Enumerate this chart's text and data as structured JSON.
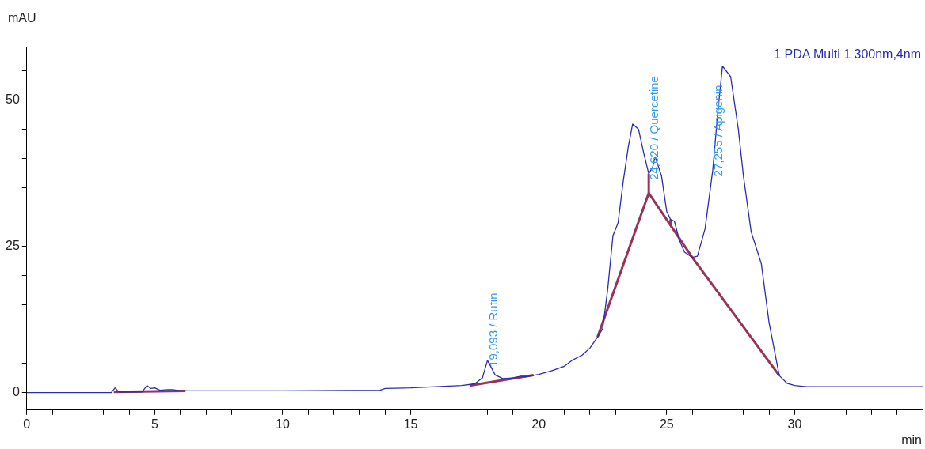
{
  "chart_data": {
    "type": "line",
    "xlabel": "min",
    "ylabel": "mAU",
    "xlim": [
      0,
      35
    ],
    "ylim": [
      -3,
      59
    ],
    "xticks": [
      0,
      {
        "value": 1,
        "label": null
      },
      {
        "value": 2,
        "label": null
      },
      {
        "value": 3,
        "label": null
      },
      {
        "value": 4,
        "label": null
      },
      5,
      {
        "value": 6,
        "label": null
      },
      {
        "value": 7,
        "label": null
      },
      {
        "value": 8,
        "label": null
      },
      {
        "value": 9,
        "label": null
      },
      10,
      {
        "value": 11,
        "label": null
      },
      {
        "value": 12,
        "label": null
      },
      {
        "value": 13,
        "label": null
      },
      {
        "value": 14,
        "label": null
      },
      15,
      {
        "value": 16,
        "label": null
      },
      {
        "value": 17,
        "label": null
      },
      {
        "value": 18,
        "label": null
      },
      {
        "value": 19,
        "label": null
      },
      20,
      {
        "value": 21,
        "label": null
      },
      {
        "value": 22,
        "label": null
      },
      {
        "value": 23,
        "label": null
      },
      {
        "value": 24,
        "label": null
      },
      25,
      {
        "value": 26,
        "label": null
      },
      {
        "value": 27,
        "label": null
      },
      {
        "value": 28,
        "label": null
      },
      {
        "value": 29,
        "label": null
      },
      30,
      {
        "value": 31,
        "label": null
      },
      {
        "value": 32,
        "label": null
      },
      {
        "value": 33,
        "label": null
      },
      {
        "value": 34,
        "label": null
      },
      {
        "value": 35,
        "label": null
      }
    ],
    "yticks": [
      0,
      {
        "value": 5,
        "label": null
      },
      {
        "value": 10,
        "label": null
      },
      {
        "value": 15,
        "label": null
      },
      {
        "value": 20,
        "label": null
      },
      25,
      {
        "value": 30,
        "label": null
      },
      {
        "value": 35,
        "label": null
      },
      {
        "value": 40,
        "label": null
      },
      {
        "value": 45,
        "label": null
      },
      50,
      {
        "value": 55,
        "label": null
      }
    ],
    "grid": false,
    "legend": "top right",
    "marker": "none",
    "series": [
      {
        "name": "1 PDA Multi 1 300nm,4nm",
        "color": "#2b2bb0",
        "x": [
          0,
          3.3,
          3.45,
          3.6,
          4.5,
          4.7,
          4.85,
          5.0,
          5.2,
          5.5,
          5.7,
          6.0,
          10,
          13.8,
          14,
          15,
          16,
          17,
          17.5,
          17.8,
          18.0,
          18.3,
          18.6,
          19,
          19.3,
          19.5,
          20,
          20.5,
          21,
          21.3,
          21.7,
          22,
          22.3,
          22.5,
          22.7,
          22.9,
          23.1,
          23.3,
          23.5,
          23.67,
          23.9,
          24.1,
          24.3,
          24.45,
          24.55,
          24.8,
          25.0,
          25.15,
          25.3,
          25.5,
          25.7,
          26.0,
          26.2,
          26.5,
          26.8,
          27.0,
          27.18,
          27.5,
          27.8,
          28.0,
          28.3,
          28.7,
          29.0,
          29.4,
          29.7,
          30,
          30.5,
          35
        ],
        "values": [
          0,
          0,
          0.8,
          0.1,
          0.1,
          1.2,
          0.7,
          0.8,
          0.4,
          0.5,
          0.5,
          0.3,
          0.3,
          0.4,
          0.7,
          0.8,
          1.0,
          1.2,
          1.5,
          2.5,
          5.5,
          3.0,
          2.4,
          2.5,
          2.8,
          2.7,
          3.1,
          3.7,
          4.5,
          5.5,
          6.4,
          7.6,
          9.5,
          10.9,
          17.8,
          26.8,
          29,
          36,
          42,
          45.9,
          45,
          41,
          37.4,
          38.5,
          40.3,
          37,
          31,
          29.6,
          29.3,
          26,
          24,
          23.1,
          23.3,
          28,
          38,
          48,
          55.8,
          54,
          45,
          37,
          27.5,
          22,
          12,
          2.9,
          1.6,
          1.2,
          1,
          1
        ]
      },
      {
        "color": "#993355",
        "x": [
          3.4,
          6.2
        ],
        "values": [
          0.1,
          0.3
        ]
      },
      {
        "color": "#993355",
        "x": [
          17.3,
          19.8
        ],
        "values": [
          1.2,
          3.0
        ]
      },
      {
        "color": "#993355",
        "x": [
          22.3,
          24.3,
          26.0,
          29.4
        ],
        "values": [
          9.5,
          34.1,
          23.1,
          2.9
        ]
      },
      {
        "color": "#993355",
        "x": [
          24.3,
          24.3
        ],
        "values": [
          34.1,
          37.4
        ]
      },
      {
        "color": "#993355",
        "x": [
          25.15,
          25.15
        ],
        "values": [
          28.6,
          29.6
        ]
      }
    ],
    "annotations": [
      {
        "text": "19,093 / Rutin",
        "x": 18.0,
        "y": 5.5
      },
      {
        "text": "24,620 / Quercetine",
        "x": 24.3,
        "y": 37.4
      },
      {
        "text": "27,255 / Apigenin",
        "x": 26.8,
        "y": 38
      }
    ]
  }
}
